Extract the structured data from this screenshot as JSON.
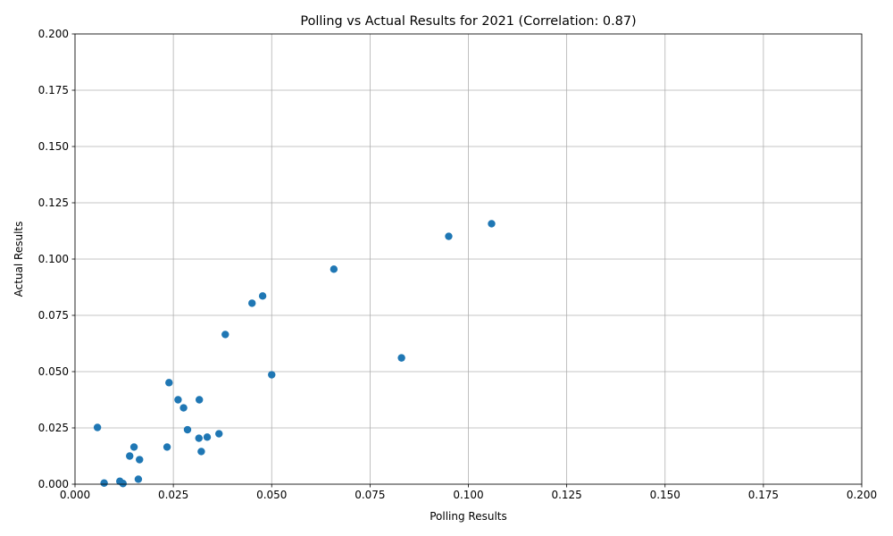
{
  "chart_data": {
    "type": "scatter",
    "title": "Polling vs Actual Results for 2021 (Correlation: 0.87)",
    "xlabel": "Polling Results",
    "ylabel": "Actual Results",
    "xlim": [
      0,
      0.2
    ],
    "ylim": [
      0,
      0.2
    ],
    "xticks": [
      "0.000",
      "0.025",
      "0.050",
      "0.075",
      "0.100",
      "0.125",
      "0.150",
      "0.175",
      "0.200"
    ],
    "yticks": [
      "0.000",
      "0.025",
      "0.050",
      "0.075",
      "0.100",
      "0.125",
      "0.150",
      "0.175",
      "0.200"
    ],
    "grid": true,
    "color": "#1f77b4",
    "points": [
      {
        "x": 0.1059,
        "y": 0.1157
      },
      {
        "x": 0.095,
        "y": 0.1101
      },
      {
        "x": 0.0658,
        "y": 0.0955
      },
      {
        "x": 0.0477,
        "y": 0.0836
      },
      {
        "x": 0.045,
        "y": 0.0804
      },
      {
        "x": 0.0382,
        "y": 0.0665
      },
      {
        "x": 0.083,
        "y": 0.0561
      },
      {
        "x": 0.05,
        "y": 0.0486
      },
      {
        "x": 0.0239,
        "y": 0.0451
      },
      {
        "x": 0.0262,
        "y": 0.0375
      },
      {
        "x": 0.0316,
        "y": 0.0375
      },
      {
        "x": 0.0276,
        "y": 0.0339
      },
      {
        "x": 0.0057,
        "y": 0.0252
      },
      {
        "x": 0.0286,
        "y": 0.0242
      },
      {
        "x": 0.0366,
        "y": 0.0224
      },
      {
        "x": 0.0336,
        "y": 0.0209
      },
      {
        "x": 0.0315,
        "y": 0.0204
      },
      {
        "x": 0.015,
        "y": 0.0165
      },
      {
        "x": 0.0234,
        "y": 0.0165
      },
      {
        "x": 0.0321,
        "y": 0.0145
      },
      {
        "x": 0.0139,
        "y": 0.0125
      },
      {
        "x": 0.0164,
        "y": 0.0109
      },
      {
        "x": 0.0161,
        "y": 0.0022
      },
      {
        "x": 0.0114,
        "y": 0.0013
      },
      {
        "x": 0.0074,
        "y": 0.0005
      },
      {
        "x": 0.0122,
        "y": 0.0003
      }
    ]
  }
}
